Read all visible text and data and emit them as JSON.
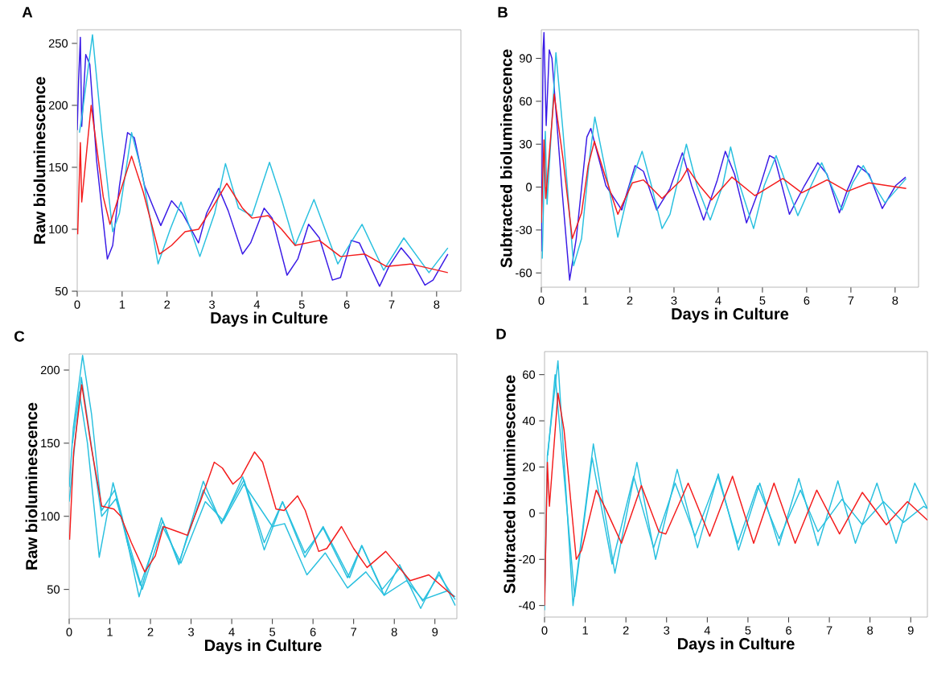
{
  "chart_data": [
    {
      "type": "line",
      "title": "A",
      "xlabel": "Days in Culture",
      "ylabel": "Raw bioluminescence",
      "xlim": [
        0,
        8.54
      ],
      "ylim": [
        50,
        261
      ],
      "xticks": [
        0,
        1,
        2,
        3,
        4,
        5,
        6,
        7,
        8
      ],
      "yticks": [
        50,
        100,
        150,
        200,
        250
      ],
      "line_style": "solid",
      "series": [
        {
          "color": "#3a1be6",
          "x": [
            0,
            0.03,
            0.07,
            0.1,
            0.19,
            0.28,
            0.43,
            0.67,
            0.79,
            0.94,
            1.12,
            1.27,
            1.5,
            1.86,
            2.1,
            2.34,
            2.7,
            2.88,
            3.15,
            3.36,
            3.68,
            3.86,
            4.16,
            4.34,
            4.67,
            4.91,
            5.15,
            5.39,
            5.68,
            5.86,
            6.1,
            6.28,
            6.73,
            6.94,
            7.21,
            7.42,
            7.74,
            7.92,
            8.25
          ],
          "values": [
            180,
            220,
            255,
            183,
            241,
            233,
            156,
            76,
            87,
            135,
            178,
            174,
            135,
            103,
            123,
            113,
            89,
            113,
            133,
            115,
            80,
            89,
            117,
            109,
            63,
            76,
            104,
            93,
            59,
            61,
            91,
            89,
            54,
            70,
            85,
            76,
            55,
            59,
            80
          ]
        },
        {
          "color": "#29c0df",
          "x": [
            0.05,
            0.1,
            0.34,
            0.55,
            0.79,
            0.94,
            1.21,
            1.44,
            1.8,
            2.07,
            2.31,
            2.73,
            3.06,
            3.3,
            3.59,
            3.89,
            4.28,
            4.55,
            4.85,
            5.27,
            5.8,
            6.34,
            6.82,
            7.27,
            7.83,
            8.25
          ],
          "values": [
            178,
            190,
            257,
            178,
            98,
            113,
            178,
            146,
            72,
            100,
            122,
            78,
            113,
            153,
            117,
            111,
            154,
            124,
            87,
            124,
            72,
            104,
            67,
            93,
            65,
            85
          ]
        },
        {
          "color": "#f41c1c",
          "x": [
            0.01,
            0.07,
            0.1,
            0.31,
            0.58,
            0.73,
            1.0,
            1.21,
            1.47,
            1.83,
            2.1,
            2.4,
            2.7,
            3.0,
            3.33,
            3.68,
            3.89,
            4.25,
            4.55,
            4.85,
            5.39,
            5.86,
            6.4,
            6.88,
            7.42,
            8.25
          ],
          "values": [
            96,
            170,
            122,
            200,
            126,
            104,
            135,
            159,
            130,
            80,
            87,
            98,
            100,
            117,
            137,
            117,
            109,
            111,
            100,
            87,
            91,
            78,
            80,
            70,
            72,
            65
          ]
        }
      ]
    },
    {
      "type": "line",
      "title": "B",
      "xlabel": "Days in Culture",
      "ylabel": "Subtracted bioluminescence",
      "xlim": [
        0,
        8.53
      ],
      "ylim": [
        -70,
        110
      ],
      "xticks": [
        0,
        1,
        2,
        3,
        4,
        5,
        6,
        7,
        8
      ],
      "yticks": [
        -60,
        -30,
        0,
        30,
        60,
        90
      ],
      "line_style": "solid",
      "series": [
        {
          "color": "#3a1be6",
          "x": [
            0,
            0.04,
            0.06,
            0.11,
            0.18,
            0.24,
            0.46,
            0.64,
            0.79,
            1.03,
            1.12,
            1.46,
            1.82,
            2.12,
            2.31,
            2.61,
            2.91,
            3.19,
            3.4,
            3.67,
            3.98,
            4.16,
            4.37,
            4.64,
            4.92,
            5.16,
            5.28,
            5.61,
            5.95,
            6.25,
            6.46,
            6.74,
            6.92,
            7.16,
            7.41,
            7.71,
            8.01,
            8.24
          ],
          "values": [
            -45,
            96,
            108,
            43,
            96,
            90,
            1,
            -65,
            -36,
            35,
            41,
            1,
            -16,
            15,
            11,
            -16,
            -1,
            24,
            1,
            -23,
            5,
            25,
            9,
            -25,
            -2,
            22,
            20,
            -19,
            1,
            17,
            9,
            -18,
            -2,
            15,
            9,
            -15,
            1,
            7
          ]
        },
        {
          "color": "#29c0df",
          "x": [
            0.02,
            0.09,
            0.13,
            0.33,
            0.49,
            0.73,
            0.91,
            1.09,
            1.21,
            1.52,
            1.73,
            2.0,
            2.28,
            2.49,
            2.73,
            2.91,
            3.28,
            3.52,
            3.82,
            4.1,
            4.28,
            4.49,
            4.8,
            5.04,
            5.31,
            5.55,
            5.8,
            6.1,
            6.34,
            6.56,
            6.8,
            7.04,
            7.28,
            7.53,
            7.77,
            8.25
          ],
          "values": [
            -50,
            39,
            -12,
            94,
            39,
            -55,
            -36,
            20,
            49,
            1,
            -35,
            1,
            25,
            1,
            -29,
            -19,
            30,
            1,
            -23,
            1,
            28,
            1,
            -29,
            1,
            22,
            1,
            -20,
            1,
            17,
            1,
            -16,
            3,
            15,
            1,
            -11,
            6
          ]
        },
        {
          "color": "#f41c1c",
          "x": [
            0,
            0.06,
            0.1,
            0.29,
            0.49,
            0.7,
            0.91,
            1.06,
            1.2,
            1.43,
            1.73,
            2.06,
            2.31,
            2.73,
            3.16,
            3.31,
            3.58,
            3.85,
            4.31,
            4.83,
            5.46,
            5.89,
            6.46,
            6.92,
            7.41,
            8.25
          ],
          "values": [
            -25,
            33,
            -8,
            65,
            20,
            -36,
            -18,
            15,
            32,
            9,
            -19,
            3,
            5,
            -8,
            5,
            13,
            1,
            -9,
            7,
            -6,
            6,
            -4,
            5,
            -3,
            3,
            -1
          ]
        }
      ]
    },
    {
      "type": "line",
      "title": "C",
      "xlabel": "Days in Culture",
      "ylabel": "Raw bioluminescence",
      "xlim": [
        0,
        9.54
      ],
      "ylim": [
        30,
        211
      ],
      "xticks": [
        0,
        1,
        2,
        3,
        4,
        5,
        6,
        7,
        8,
        9
      ],
      "yticks": [
        50,
        100,
        150,
        200
      ],
      "line_style": "solid",
      "series": [
        {
          "color": "#29c0df",
          "x": [
            0.08,
            0.25,
            0.45,
            0.74,
            1.08,
            1.3,
            1.72,
            2.27,
            2.7,
            3.3,
            3.75,
            4.27,
            4.8,
            5.25,
            5.8,
            6.25,
            6.9,
            7.2,
            7.75,
            8.13,
            8.65,
            9.1,
            9.5
          ],
          "values": [
            150,
            185,
            150,
            72,
            123,
            100,
            45,
            99,
            67,
            124,
            95,
            127,
            77,
            110,
            72,
            93,
            58,
            80,
            46,
            67,
            37,
            62,
            39
          ]
        },
        {
          "color": "#29c0df",
          "x": [
            0,
            0.1,
            0.33,
            0.55,
            0.8,
            1.12,
            1.45,
            1.75,
            2.3,
            2.7,
            3.3,
            3.75,
            4.3,
            4.8,
            5.25,
            5.8,
            6.25,
            6.85,
            7.2,
            7.7,
            8.15,
            8.7,
            9.1,
            9.5
          ],
          "values": [
            120,
            160,
            210,
            170,
            104,
            118,
            80,
            53,
            97,
            68,
            118,
            96,
            125,
            82,
            110,
            75,
            92,
            58,
            80,
            50,
            65,
            42,
            60,
            43
          ]
        },
        {
          "color": "#29c0df",
          "x": [
            0,
            0.3,
            0.8,
            1.15,
            1.8,
            2.3,
            2.75,
            3.35,
            3.8,
            4.3,
            5.0,
            5.3,
            5.85,
            6.3,
            6.85,
            7.3,
            7.75,
            8.3,
            8.7,
            9.3,
            9.5
          ],
          "values": [
            110,
            195,
            100,
            112,
            50,
            93,
            68,
            110,
            97,
            122,
            93,
            95,
            60,
            75,
            51,
            62,
            46,
            56,
            43,
            49,
            45
          ]
        },
        {
          "color": "#f41c1c",
          "x": [
            0.01,
            0.11,
            0.31,
            0.54,
            0.8,
            1.1,
            1.27,
            1.53,
            1.86,
            2.12,
            2.32,
            2.72,
            2.91,
            3.24,
            3.57,
            3.77,
            4.03,
            4.23,
            4.56,
            4.76,
            5.09,
            5.29,
            5.62,
            5.81,
            6.14,
            6.34,
            6.7,
            7.0,
            7.33,
            7.79,
            8.39,
            8.85,
            9.47
          ],
          "values": [
            84,
            144,
            190,
            148,
            107,
            105,
            100,
            82,
            62,
            73,
            93,
            89,
            87,
            111,
            137,
            133,
            122,
            127,
            144,
            137,
            105,
            104,
            114,
            104,
            76,
            78,
            93,
            78,
            65,
            76,
            56,
            60,
            45
          ]
        }
      ]
    },
    {
      "type": "line",
      "title": "D",
      "xlabel": "Days in Culture",
      "ylabel": "Subtracted bioluminescence",
      "xlim": [
        0,
        9.41
      ],
      "ylim": [
        -45,
        70
      ],
      "xticks": [
        0,
        1,
        2,
        3,
        4,
        5,
        6,
        7,
        8,
        9
      ],
      "yticks": [
        -40,
        -20,
        0,
        20,
        40,
        60
      ],
      "line_style": "solid",
      "series": [
        {
          "color": "#29c0df",
          "x": [
            0,
            0.07,
            0.33,
            0.7,
            1.2,
            1.73,
            2.27,
            2.73,
            3.26,
            3.76,
            4.27,
            4.77,
            5.29,
            5.76,
            6.25,
            6.72,
            7.21,
            7.64,
            8.17,
            8.64,
            9.1,
            9.41
          ],
          "values": [
            -42,
            25,
            66,
            -40,
            30,
            -26,
            22,
            -20,
            19,
            -15,
            17,
            -16,
            13,
            -14,
            15,
            -14,
            14,
            -13,
            13,
            -13,
            13,
            2
          ]
        },
        {
          "color": "#29c0df",
          "x": [
            0.08,
            0.26,
            0.74,
            1.17,
            1.66,
            2.19,
            2.68,
            3.21,
            3.7,
            4.26,
            4.75,
            5.24,
            5.77,
            6.29,
            6.72,
            7.31,
            7.81,
            8.33,
            8.82,
            9.32,
            9.41
          ],
          "values": [
            25,
            60,
            -36,
            24,
            -22,
            16,
            -15,
            13,
            -10,
            16,
            -13,
            12,
            -11,
            10,
            -8,
            6,
            -5,
            5,
            -4,
            3,
            2
          ]
        },
        {
          "color": "#f41c1c",
          "x": [
            0,
            0.07,
            0.12,
            0.33,
            0.48,
            0.78,
            0.91,
            1.27,
            1.5,
            1.89,
            2.38,
            2.81,
            2.98,
            3.53,
            4.06,
            4.62,
            5.14,
            5.64,
            6.16,
            6.69,
            7.25,
            7.81,
            8.4,
            8.92,
            9.41
          ],
          "values": [
            -40,
            22,
            3,
            52,
            36,
            -20,
            -16,
            10,
            2,
            -13,
            12,
            -8,
            -9,
            13,
            -10,
            16,
            -13,
            13,
            -13,
            10,
            -9,
            9,
            -5,
            5,
            -3
          ]
        }
      ]
    }
  ]
}
